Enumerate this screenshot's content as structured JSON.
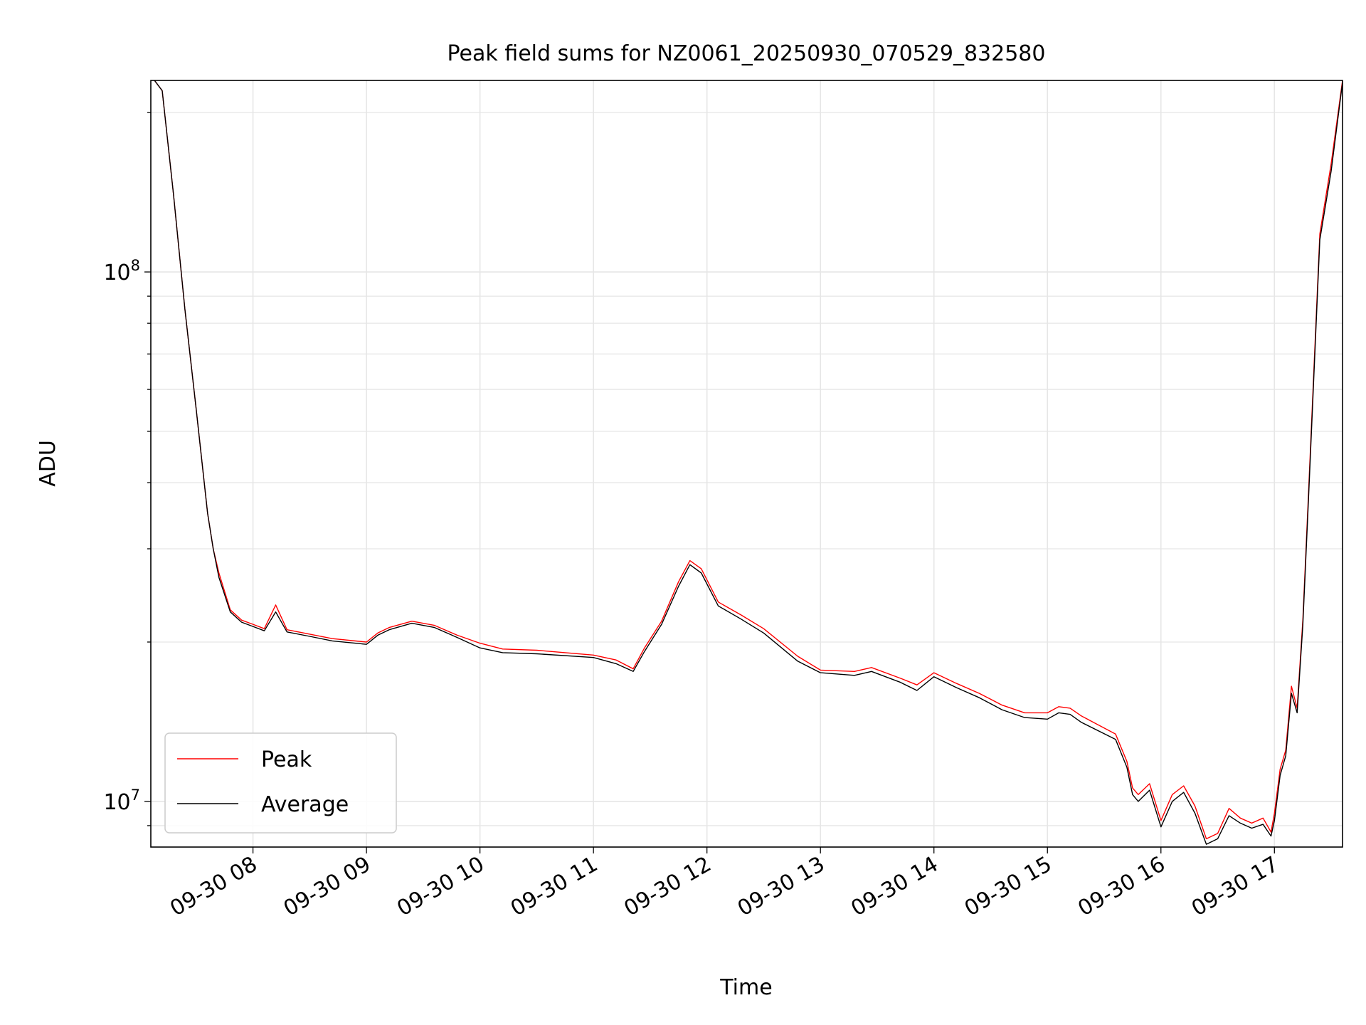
{
  "chart_data": {
    "type": "line",
    "title": "Peak field sums for NZ0061_20250930_070529_832580",
    "xlabel": "Time",
    "ylabel": "ADU",
    "yscale": "log",
    "grid": true,
    "legend_position": "lower-left",
    "xlim": [
      7.1,
      17.6
    ],
    "ylim": [
      8200000,
      230000000
    ],
    "x_unit": "hour of day",
    "x_ticks": [
      {
        "value": 8,
        "label": "09-30 08"
      },
      {
        "value": 9,
        "label": "09-30 09"
      },
      {
        "value": 10,
        "label": "09-30 10"
      },
      {
        "value": 11,
        "label": "09-30 11"
      },
      {
        "value": 12,
        "label": "09-30 12"
      },
      {
        "value": 13,
        "label": "09-30 13"
      },
      {
        "value": 14,
        "label": "09-30 14"
      },
      {
        "value": 15,
        "label": "09-30 15"
      },
      {
        "value": 16,
        "label": "09-30 16"
      },
      {
        "value": 17,
        "label": "09-30 17"
      }
    ],
    "y_ticks": [
      {
        "value": 10000000,
        "base": "10",
        "exp": "7"
      },
      {
        "value": 100000000,
        "base": "10",
        "exp": "8"
      }
    ],
    "x": [
      7.1,
      7.2,
      7.3,
      7.4,
      7.5,
      7.6,
      7.65,
      7.7,
      7.8,
      7.9,
      8.0,
      8.1,
      8.2,
      8.3,
      8.5,
      8.7,
      9.0,
      9.1,
      9.2,
      9.4,
      9.6,
      9.8,
      10.0,
      10.2,
      10.5,
      11.0,
      11.2,
      11.35,
      11.45,
      11.6,
      11.75,
      11.85,
      11.95,
      12.1,
      12.3,
      12.5,
      12.8,
      13.0,
      13.3,
      13.45,
      13.7,
      13.85,
      14.0,
      14.2,
      14.4,
      14.6,
      14.8,
      15.0,
      15.1,
      15.2,
      15.3,
      15.6,
      15.7,
      15.75,
      15.8,
      15.9,
      16.0,
      16.1,
      16.2,
      16.3,
      16.4,
      16.5,
      16.6,
      16.7,
      16.8,
      16.9,
      16.97,
      17.0,
      17.05,
      17.1,
      17.15,
      17.2,
      17.25,
      17.3,
      17.4,
      17.5,
      17.6
    ],
    "series": [
      {
        "name": "Peak",
        "color": "#ff0000",
        "values": [
          235000000,
          220000000,
          140000000,
          85000000,
          55000000,
          35000000,
          30000000,
          27000000,
          23000000,
          22000000,
          21600000,
          21200000,
          23500000,
          21100000,
          20700000,
          20300000,
          20000000,
          20800000,
          21300000,
          21900000,
          21500000,
          20600000,
          19900000,
          19400000,
          19300000,
          18900000,
          18500000,
          17800000,
          19500000,
          21900000,
          26000000,
          28500000,
          27500000,
          23800000,
          22500000,
          21200000,
          18800000,
          17700000,
          17600000,
          17900000,
          17100000,
          16600000,
          17500000,
          16700000,
          16000000,
          15200000,
          14700000,
          14700000,
          15100000,
          15000000,
          14500000,
          13400000,
          11900000,
          10600000,
          10300000,
          10800000,
          9200000,
          10300000,
          10700000,
          9800000,
          8500000,
          8700000,
          9700000,
          9300000,
          9100000,
          9300000,
          8750000,
          9500000,
          11500000,
          12500000,
          16500000,
          15000000,
          22000000,
          38000000,
          118000000,
          160000000,
          230000000
        ]
      },
      {
        "name": "Average",
        "color": "#000000",
        "values": [
          235000000,
          220000000,
          140000000,
          85000000,
          55000000,
          35000000,
          30000000,
          26500000,
          22800000,
          21800000,
          21400000,
          21000000,
          22800000,
          20900000,
          20500000,
          20100000,
          19800000,
          20600000,
          21100000,
          21700000,
          21300000,
          20400000,
          19500000,
          19100000,
          19000000,
          18700000,
          18200000,
          17600000,
          19200000,
          21600000,
          25500000,
          28000000,
          27000000,
          23400000,
          22100000,
          20800000,
          18400000,
          17500000,
          17300000,
          17600000,
          16800000,
          16200000,
          17200000,
          16400000,
          15700000,
          14900000,
          14400000,
          14300000,
          14700000,
          14600000,
          14100000,
          13100000,
          11600000,
          10300000,
          10000000,
          10500000,
          8950000,
          10000000,
          10400000,
          9500000,
          8300000,
          8500000,
          9400000,
          9100000,
          8900000,
          9050000,
          8600000,
          9200000,
          11200000,
          12200000,
          16000000,
          14700000,
          21500000,
          37000000,
          115000000,
          155000000,
          228000000
        ]
      }
    ]
  }
}
